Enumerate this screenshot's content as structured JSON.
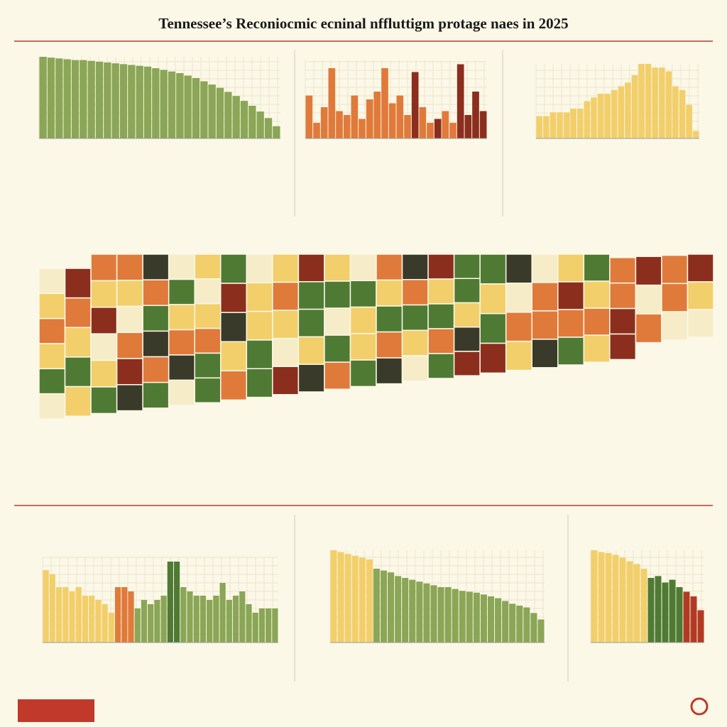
{
  "title": "Tennessee’s Reconiocmic ecninal nffluttigm protage naes in 2025",
  "chart_data": [
    {
      "type": "bar",
      "ylim": [
        0,
        100
      ],
      "grid": true,
      "color": "#8aa656",
      "values": [
        100,
        99,
        98,
        97,
        96,
        96,
        95,
        94,
        93,
        92,
        91,
        90,
        89,
        88,
        86,
        84,
        82,
        80,
        77,
        74,
        70,
        66,
        62,
        57,
        52,
        46,
        40,
        33,
        25,
        15
      ]
    },
    {
      "type": "bar",
      "ylim": [
        0,
        100
      ],
      "grid": true,
      "values": [
        55,
        20,
        40,
        90,
        35,
        30,
        55,
        25,
        50,
        60,
        90,
        45,
        55,
        30,
        85,
        40,
        20,
        25,
        35,
        20,
        95,
        30,
        60,
        35
      ],
      "colors": [
        "#e07a3a",
        "#e07a3a",
        "#e07a3a",
        "#e07a3a",
        "#e07a3a",
        "#e07a3a",
        "#e07a3a",
        "#e07a3a",
        "#e07a3a",
        "#e07a3a",
        "#e07a3a",
        "#e07a3a",
        "#e07a3a",
        "#e07a3a",
        "#8b2e1e",
        "#e07a3a",
        "#e07a3a",
        "#8b2e1e",
        "#e07a3a",
        "#e07a3a",
        "#8b2e1e",
        "#8b2e1e",
        "#8b2e1e",
        "#8b2e1e"
      ]
    },
    {
      "type": "bar",
      "ylim": [
        0,
        100
      ],
      "grid": true,
      "color": "#f2cf6a",
      "values": [
        30,
        30,
        35,
        35,
        35,
        40,
        40,
        50,
        55,
        60,
        60,
        65,
        70,
        75,
        85,
        100,
        100,
        95,
        95,
        90,
        70,
        65,
        45,
        10
      ]
    },
    {
      "type": "bar",
      "ylim": [
        0,
        100
      ],
      "grid": true,
      "values": [
        85,
        80,
        65,
        65,
        60,
        65,
        55,
        55,
        50,
        45,
        35,
        65,
        65,
        60,
        40,
        50,
        45,
        50,
        55,
        95,
        95,
        65,
        60,
        55,
        55,
        50,
        55,
        70,
        50,
        55,
        60,
        45,
        35,
        40,
        40,
        40
      ],
      "colors": [
        "#f2cf6a",
        "#f2cf6a",
        "#f2cf6a",
        "#f2cf6a",
        "#f2cf6a",
        "#f2cf6a",
        "#f2cf6a",
        "#f2cf6a",
        "#f2cf6a",
        "#f2cf6a",
        "#f2cf6a",
        "#e07a3a",
        "#e07a3a",
        "#e07a3a",
        "#8aa656",
        "#8aa656",
        "#8aa656",
        "#8aa656",
        "#8aa656",
        "#4f7a34",
        "#4f7a34",
        "#8aa656",
        "#8aa656",
        "#8aa656",
        "#8aa656",
        "#8aa656",
        "#8aa656",
        "#8aa656",
        "#8aa656",
        "#8aa656",
        "#8aa656",
        "#8aa656",
        "#8aa656",
        "#8aa656",
        "#8aa656",
        "#8aa656"
      ]
    },
    {
      "type": "bar",
      "ylim": [
        0,
        100
      ],
      "grid": true,
      "values": [
        100,
        98,
        96,
        94,
        92,
        90,
        80,
        78,
        76,
        72,
        70,
        68,
        66,
        64,
        62,
        60,
        60,
        58,
        56,
        55,
        54,
        52,
        50,
        48,
        45,
        42,
        40,
        38,
        32,
        25
      ],
      "colors": [
        "#f2cf6a",
        "#f2cf6a",
        "#f2cf6a",
        "#f2cf6a",
        "#f2cf6a",
        "#f2cf6a",
        "#8aa656",
        "#8aa656",
        "#8aa656",
        "#8aa656",
        "#8aa656",
        "#8aa656",
        "#8aa656",
        "#8aa656",
        "#8aa656",
        "#8aa656",
        "#8aa656",
        "#8aa656",
        "#8aa656",
        "#8aa656",
        "#8aa656",
        "#8aa656",
        "#8aa656",
        "#8aa656",
        "#8aa656",
        "#8aa656",
        "#8aa656",
        "#8aa656",
        "#8aa656",
        "#8aa656"
      ]
    },
    {
      "type": "bar",
      "ylim": [
        0,
        100
      ],
      "grid": true,
      "values": [
        100,
        98,
        97,
        95,
        92,
        88,
        85,
        80,
        70,
        72,
        65,
        68,
        60,
        55,
        50,
        35
      ],
      "colors": [
        "#f2cf6a",
        "#f2cf6a",
        "#f2cf6a",
        "#f2cf6a",
        "#f2cf6a",
        "#f2cf6a",
        "#f2cf6a",
        "#f2cf6a",
        "#4f7a34",
        "#4f7a34",
        "#4f7a34",
        "#4f7a34",
        "#4f7a34",
        "#b23a22",
        "#b23a22",
        "#b23a22"
      ]
    }
  ]
}
